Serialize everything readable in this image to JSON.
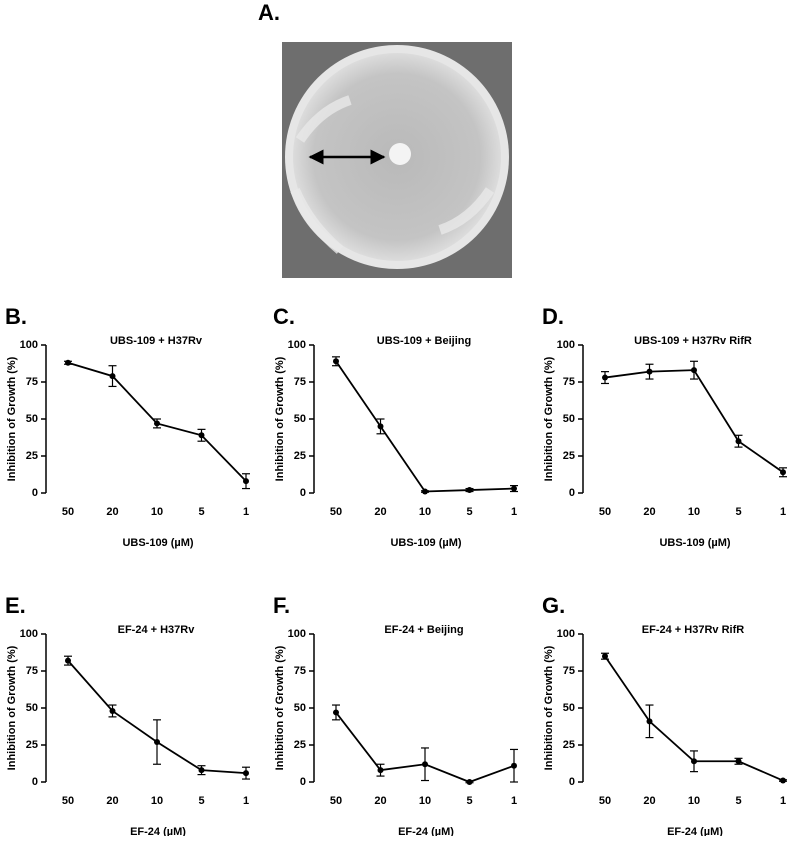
{
  "image_panel": {
    "label": "A."
  },
  "chart_data": [
    {
      "type": "line",
      "panel": "B.",
      "title": "UBS-109 + H37Rv",
      "xlabel": "UBS-109 (µM)",
      "ylabel": "Inhibition of Growth (%)",
      "categories": [
        "50",
        "20",
        "10",
        "5",
        "1"
      ],
      "values": [
        88,
        79,
        47,
        39,
        8
      ],
      "errors": [
        1,
        7,
        3,
        4,
        5
      ],
      "color": "#000000",
      "ylim": [
        0,
        100
      ],
      "yticks": [
        0,
        25,
        50,
        75,
        100
      ]
    },
    {
      "type": "line",
      "panel": "C.",
      "title": "UBS-109 + Beijing",
      "xlabel": "UBS-109 (µM)",
      "ylabel": "Inhibition of Growth (%)",
      "categories": [
        "50",
        "20",
        "10",
        "5",
        "1"
      ],
      "values": [
        89,
        45,
        1,
        2,
        3
      ],
      "errors": [
        3,
        5,
        0.5,
        1,
        2
      ],
      "color": "#000000",
      "ylim": [
        0,
        100
      ],
      "yticks": [
        0,
        25,
        50,
        75,
        100
      ]
    },
    {
      "type": "line",
      "panel": "D.",
      "title": "UBS-109 + H37Rv RifR",
      "xlabel": "UBS-109 (µM)",
      "ylabel": "Inhibition of Growth (%)",
      "categories": [
        "50",
        "20",
        "10",
        "5",
        "1"
      ],
      "values": [
        78,
        82,
        83,
        35,
        14
      ],
      "errors": [
        4,
        5,
        6,
        4,
        3
      ],
      "color": "#000000",
      "ylim": [
        0,
        100
      ],
      "yticks": [
        0,
        25,
        50,
        75,
        100
      ]
    },
    {
      "type": "line",
      "panel": "E.",
      "title": "EF-24 + H37Rv",
      "xlabel": "EF-24 (µM)",
      "ylabel": "Inhibition of Growth (%)",
      "categories": [
        "50",
        "20",
        "10",
        "5",
        "1"
      ],
      "values": [
        82,
        48,
        27,
        8,
        6
      ],
      "errors": [
        3,
        4,
        15,
        3,
        4
      ],
      "color": "#000000",
      "ylim": [
        0,
        100
      ],
      "yticks": [
        0,
        25,
        50,
        75,
        100
      ]
    },
    {
      "type": "line",
      "panel": "F.",
      "title": "EF-24 + Beijing",
      "xlabel": "EF-24 (µM)",
      "ylabel": "Inhibition of Growth (%)",
      "categories": [
        "50",
        "20",
        "10",
        "5",
        "1"
      ],
      "values": [
        47,
        8,
        12,
        0,
        11
      ],
      "errors": [
        5,
        4,
        11,
        0.5,
        11
      ],
      "color": "#000000",
      "ylim": [
        0,
        100
      ],
      "yticks": [
        0,
        25,
        50,
        75,
        100
      ]
    },
    {
      "type": "line",
      "panel": "G.",
      "title": "EF-24 + H37Rv RifR",
      "xlabel": "EF-24 (µM)",
      "ylabel": "Inhibition of Growth (%)",
      "categories": [
        "50",
        "20",
        "10",
        "5",
        "1"
      ],
      "values": [
        85,
        41,
        14,
        14,
        1
      ],
      "errors": [
        2,
        11,
        7,
        2,
        0.5
      ],
      "color": "#000000",
      "ylim": [
        0,
        100
      ],
      "yticks": [
        0,
        25,
        50,
        75,
        100
      ]
    }
  ]
}
